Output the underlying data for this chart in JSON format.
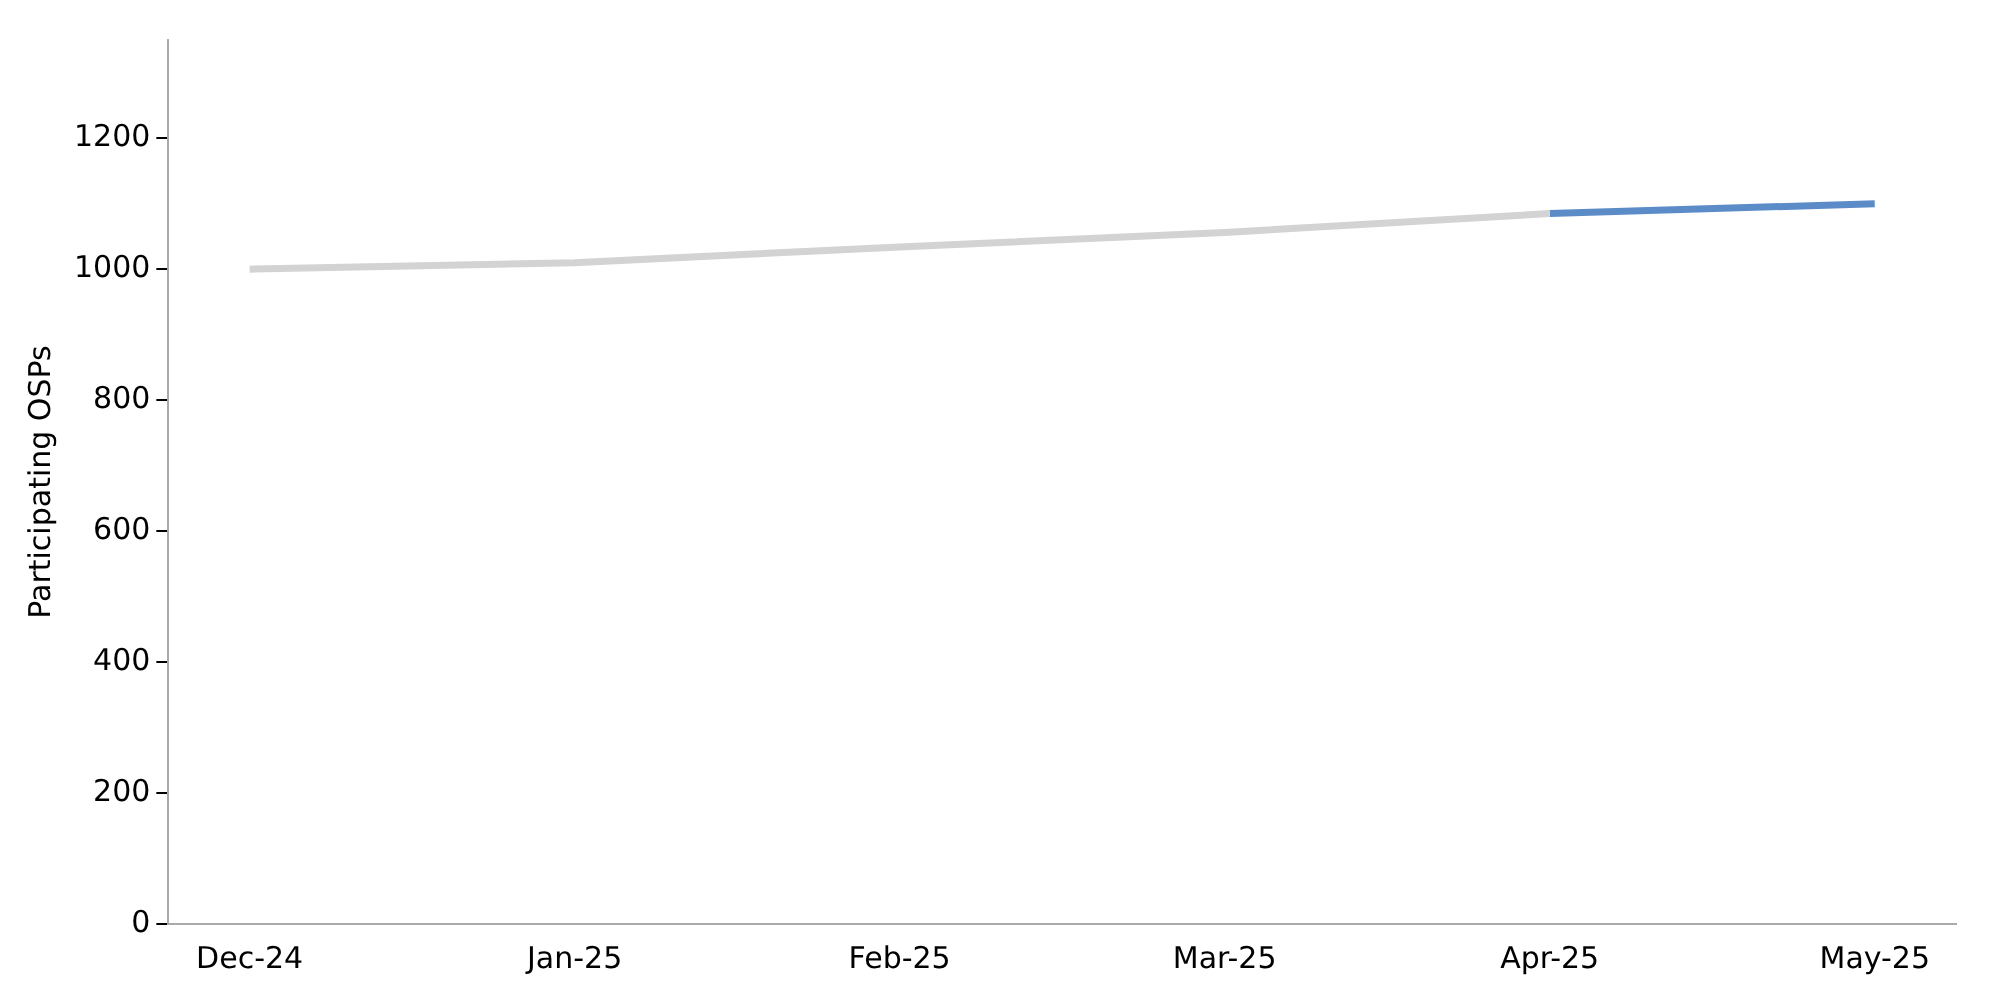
{
  "chart_data": {
    "type": "line",
    "ylabel": "Participating OSPs",
    "categories": [
      "Dec-24",
      "Jan-25",
      "Feb-25",
      "Mar-25",
      "Apr-25",
      "May-25"
    ],
    "series": [
      {
        "color": "#d3d3d3",
        "values": [
          1000,
          1010,
          1034,
          1056,
          1085,
          null
        ]
      },
      {
        "color": "#5b8cc8",
        "values": [
          null,
          null,
          null,
          null,
          1085,
          1100
        ]
      }
    ],
    "ylim": [
      0,
      1350
    ],
    "yticks": [
      0,
      200,
      400,
      600,
      800,
      1000,
      1200
    ],
    "grid": false,
    "legend": false,
    "marker": "none",
    "line_style": "solid"
  }
}
